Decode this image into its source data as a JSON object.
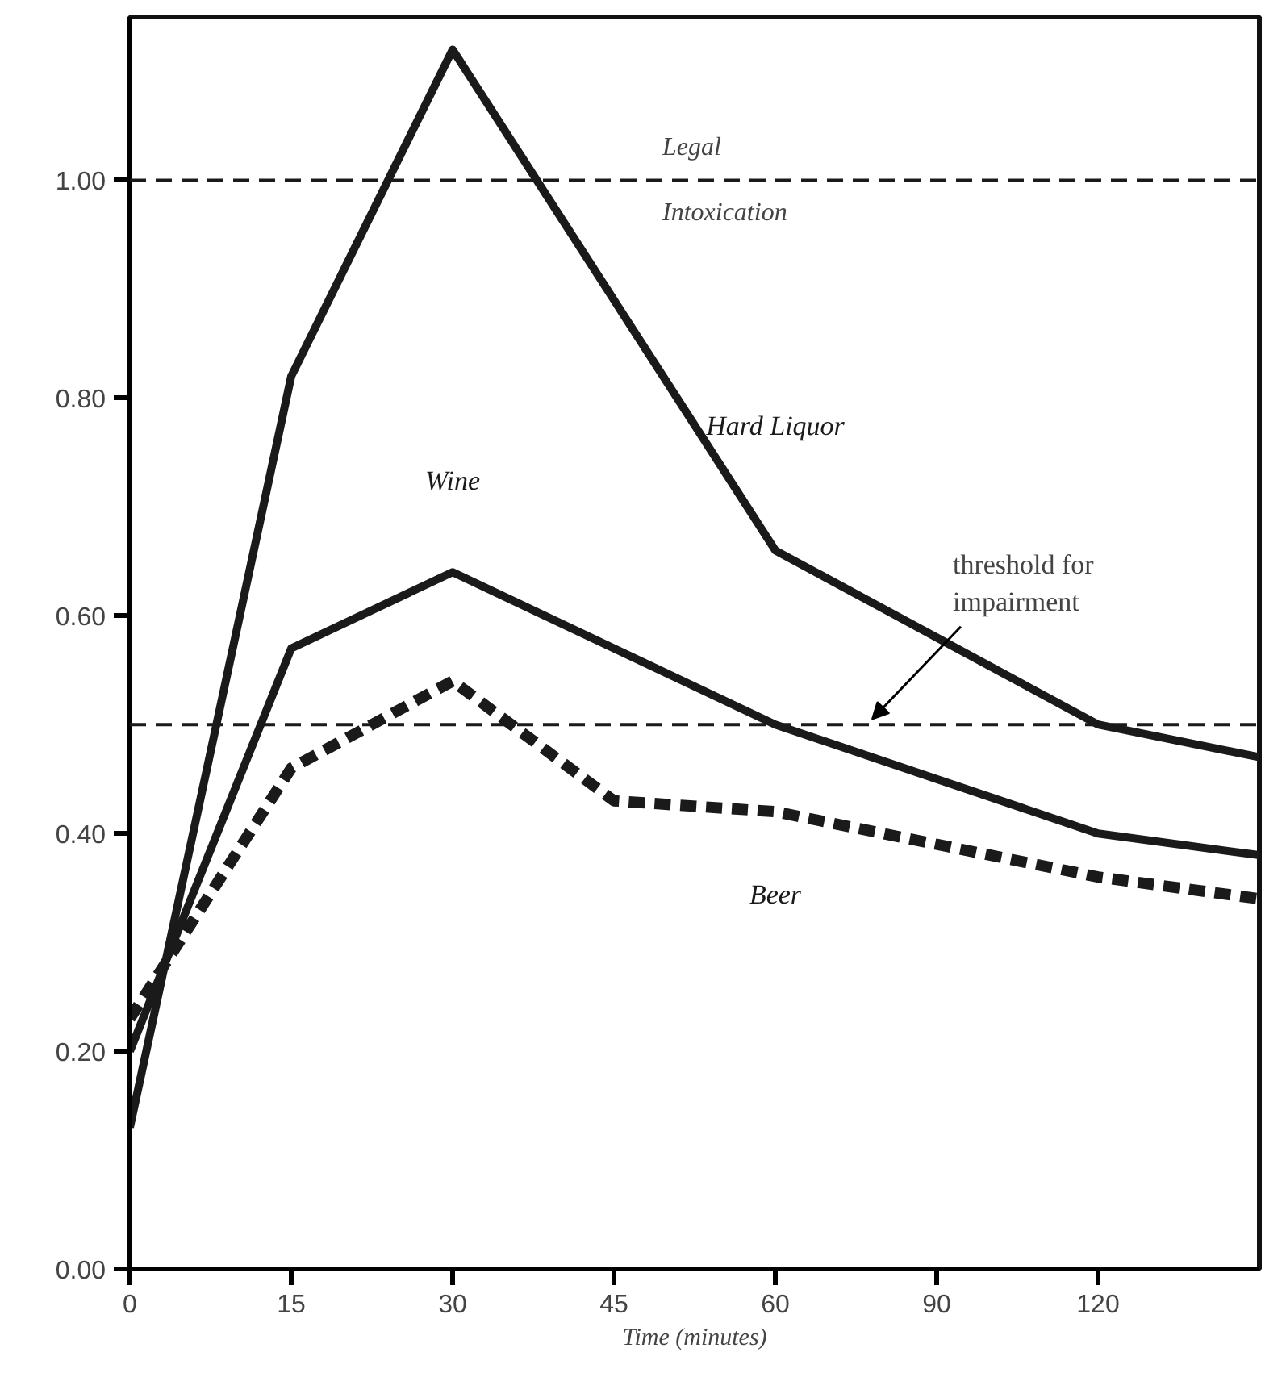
{
  "chart_data": {
    "type": "line",
    "xlabel": "Time (minutes)",
    "categories": [
      "0",
      "15",
      "30",
      "45",
      "60",
      "90",
      "120",
      null
    ],
    "ylim": [
      0,
      1.15
    ],
    "yticks": [
      {
        "value": 0,
        "label": "0.00"
      },
      {
        "value": 0.2,
        "label": "0.20"
      },
      {
        "value": 0.4,
        "label": "0.40"
      },
      {
        "value": 0.6,
        "label": "0.60"
      },
      {
        "value": 0.8,
        "label": "0.80"
      },
      {
        "value": 1.0,
        "label": "1.00"
      }
    ],
    "series": [
      {
        "name": "Hard Liquor",
        "color": "#1a1a1a",
        "line_style": "solid",
        "values": [
          0.13,
          0.82,
          1.12,
          0.89,
          0.66,
          0.58,
          0.5,
          0.47
        ]
      },
      {
        "name": "Wine",
        "color": "#1a1a1a",
        "line_style": "solid",
        "values": [
          0.2,
          0.57,
          0.64,
          0.57,
          0.5,
          0.45,
          0.4,
          0.38
        ]
      },
      {
        "name": "Beer",
        "color": "#1a1a1a",
        "line_style": "dashed",
        "values": [
          0.23,
          0.46,
          0.54,
          0.43,
          0.42,
          0.39,
          0.36,
          0.34
        ]
      }
    ],
    "ref_lines": [
      {
        "axis": "y",
        "value": 1.0,
        "label": "Legal\nIntoxication",
        "line_style": "dashed",
        "color": "#1a1a1a"
      },
      {
        "axis": "y",
        "value": 0.5,
        "label": "threshold for\nimpairment",
        "line_style": "dashed",
        "color": "#1a1a1a"
      }
    ],
    "grid": false,
    "marker": "none"
  }
}
